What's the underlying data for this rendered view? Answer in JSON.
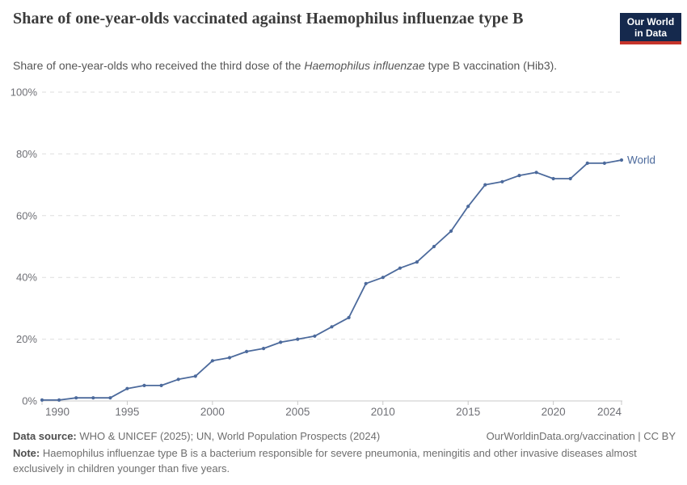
{
  "header": {
    "title": "Share of one-year-olds vaccinated against Haemophilus influenzae type B",
    "subtitle_pre": "Share of one-year-olds who received the third dose of the ",
    "subtitle_italic": "Haemophilus influenzae",
    "subtitle_post": " type B vaccination (Hib3)."
  },
  "logo": {
    "line1": "Our World",
    "line2": "in Data",
    "bg_color": "#15294d",
    "accent_color": "#c5342b"
  },
  "chart_data": {
    "type": "line",
    "title": "Share of one-year-olds vaccinated against Haemophilus influenzae type B",
    "subtitle": "Share of one-year-olds who received the third dose of the Haemophilus influenzae type B vaccination (Hib3).",
    "x": [
      1990,
      1991,
      1992,
      1993,
      1994,
      1995,
      1996,
      1997,
      1998,
      1999,
      2000,
      2001,
      2002,
      2003,
      2004,
      2005,
      2006,
      2007,
      2008,
      2009,
      2010,
      2011,
      2012,
      2013,
      2014,
      2015,
      2016,
      2017,
      2018,
      2019,
      2020,
      2021,
      2022,
      2023,
      2024
    ],
    "series": [
      {
        "name": "World",
        "color": "#4c6a9c",
        "values": [
          0.3,
          0.3,
          1,
          1,
          1,
          4,
          5,
          5,
          7,
          8,
          13,
          14,
          16,
          17,
          19,
          20,
          21,
          24,
          27,
          38,
          40,
          43,
          45,
          50,
          55,
          63,
          70,
          71,
          73,
          74,
          72,
          72,
          77,
          77,
          78
        ]
      }
    ],
    "xlim": [
      1990,
      2024
    ],
    "ylim": [
      0,
      100
    ],
    "x_ticks": [
      1990,
      1995,
      2000,
      2005,
      2010,
      2015,
      2020,
      2024
    ],
    "y_ticks": [
      0,
      20,
      40,
      60,
      80,
      100
    ],
    "y_tick_suffix": "%",
    "grid": "horizontal-dashed",
    "end_label": "World",
    "grid_color": "#dedede",
    "axis_line_color": "#c8c8c8",
    "tick_label_color": "#6f7076"
  },
  "footer": {
    "datasource_label": "Data source:",
    "datasource_text": " WHO & UNICEF (2025); UN, World Population Prospects (2024)",
    "link_text": "OurWorldinData.org/vaccination | CC BY",
    "note_label": "Note:",
    "note_text": " Haemophilus influenzae type B is a bacterium responsible for severe pneumonia, meningitis and other invasive diseases almost exclusively in children younger than five years."
  }
}
